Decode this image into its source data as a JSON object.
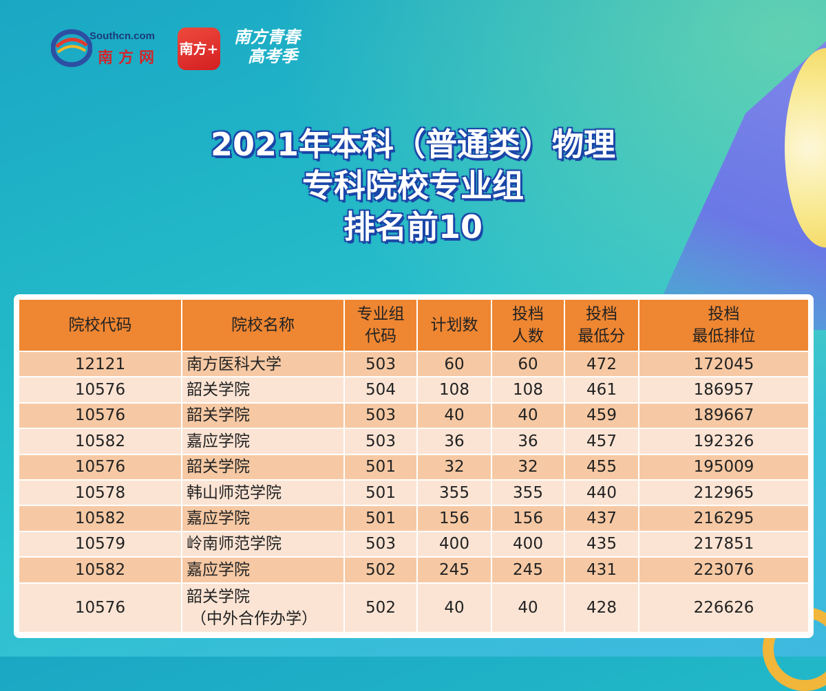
{
  "logos": {
    "southcn_url": "Southcn.com",
    "southcn_name": "南方网",
    "app_name": "南方+",
    "youth_line1": "南方青春",
    "youth_line2": "高考季"
  },
  "title": {
    "line1": "2021年本科（普通类）物理",
    "line2": "专科院校专业组",
    "line3": "排名前10"
  },
  "table": {
    "headers": {
      "code": "院校代码",
      "name": "院校名称",
      "group_l1": "专业组",
      "group_l2": "代码",
      "plan": "计划数",
      "admit_l1": "投档",
      "admit_l2": "人数",
      "minscore_l1": "投档",
      "minscore_l2": "最低分",
      "minrank_l1": "投档",
      "minrank_l2": "最低排位"
    },
    "rows": [
      {
        "code": "12121",
        "name": "南方医科大学",
        "name2": "",
        "group": "503",
        "plan": "60",
        "admit": "60",
        "min_score": "472",
        "min_rank": "172045"
      },
      {
        "code": "10576",
        "name": "韶关学院",
        "name2": "",
        "group": "504",
        "plan": "108",
        "admit": "108",
        "min_score": "461",
        "min_rank": "186957"
      },
      {
        "code": "10576",
        "name": "韶关学院",
        "name2": "",
        "group": "503",
        "plan": "40",
        "admit": "40",
        "min_score": "459",
        "min_rank": "189667"
      },
      {
        "code": "10582",
        "name": "嘉应学院",
        "name2": "",
        "group": "503",
        "plan": "36",
        "admit": "36",
        "min_score": "457",
        "min_rank": "192326"
      },
      {
        "code": "10576",
        "name": "韶关学院",
        "name2": "",
        "group": "501",
        "plan": "32",
        "admit": "32",
        "min_score": "455",
        "min_rank": "195009"
      },
      {
        "code": "10578",
        "name": "韩山师范学院",
        "name2": "",
        "group": "501",
        "plan": "355",
        "admit": "355",
        "min_score": "440",
        "min_rank": "212965"
      },
      {
        "code": "10582",
        "name": "嘉应学院",
        "name2": "",
        "group": "501",
        "plan": "156",
        "admit": "156",
        "min_score": "437",
        "min_rank": "216295"
      },
      {
        "code": "10579",
        "name": "岭南师范学院",
        "name2": "",
        "group": "503",
        "plan": "400",
        "admit": "400",
        "min_score": "435",
        "min_rank": "217851"
      },
      {
        "code": "10582",
        "name": "嘉应学院",
        "name2": "",
        "group": "502",
        "plan": "245",
        "admit": "245",
        "min_score": "431",
        "min_rank": "223076"
      },
      {
        "code": "10576",
        "name": "韶关学院",
        "name2": "（中外合作办学）",
        "group": "502",
        "plan": "40",
        "admit": "40",
        "min_score": "428",
        "min_rank": "226626"
      }
    ]
  }
}
